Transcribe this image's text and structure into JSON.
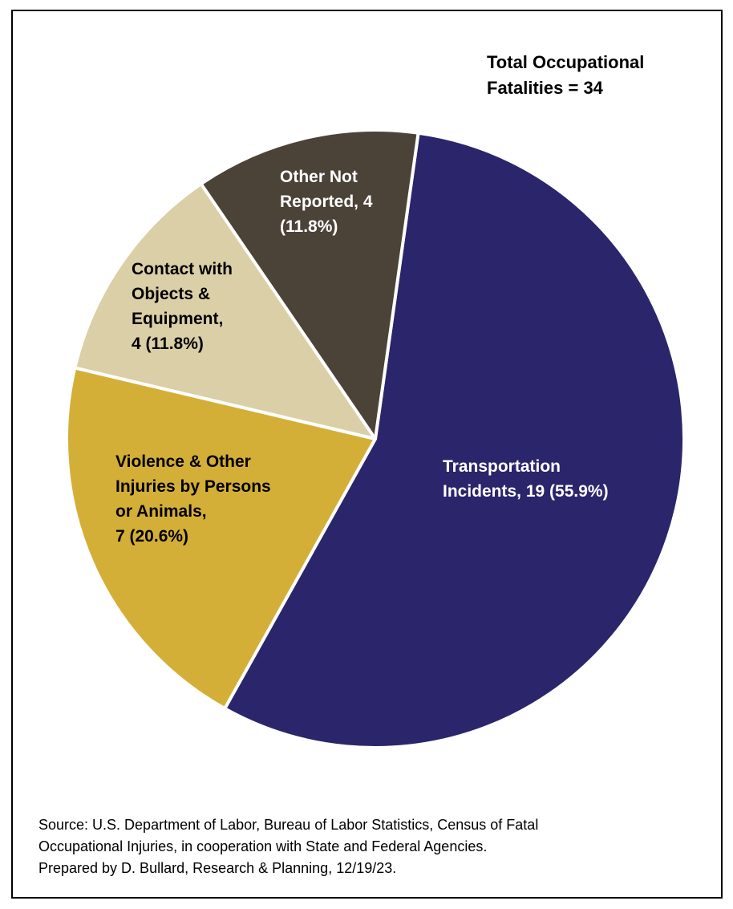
{
  "chart_data": {
    "type": "pie",
    "title": "Total Occupational\nFatalities = 34",
    "total": 34,
    "slices": [
      {
        "name": "Transportation Incidents",
        "value": 19,
        "percent": 55.9,
        "color": "#2B256B",
        "label": "Transportation\nIncidents, 19 (55.9%)"
      },
      {
        "name": "Violence & Other Injuries by Persons or Animals",
        "value": 7,
        "percent": 20.6,
        "color": "#D4AF37",
        "label": "Violence & Other\nInjuries by Persons\nor Animals,\n7 (20.6%)"
      },
      {
        "name": "Contact with Objects & Equipment",
        "value": 4,
        "percent": 11.8,
        "color": "#DBCFA7",
        "label": "Contact with\nObjects &\nEquipment,\n4 (11.8%)"
      },
      {
        "name": "Other Not Reported",
        "value": 4,
        "percent": 11.8,
        "color": "#4B4238",
        "label": "Other Not\nReported, 4\n(11.8%)"
      }
    ]
  },
  "source_lines": [
    "Source: U.S. Department of Labor, Bureau of Labor Statistics, Census of Fatal",
    "Occupational Injuries, in cooperation with State and Federal Agencies.",
    "Prepared by D. Bullard, Research & Planning, 12/19/23."
  ]
}
